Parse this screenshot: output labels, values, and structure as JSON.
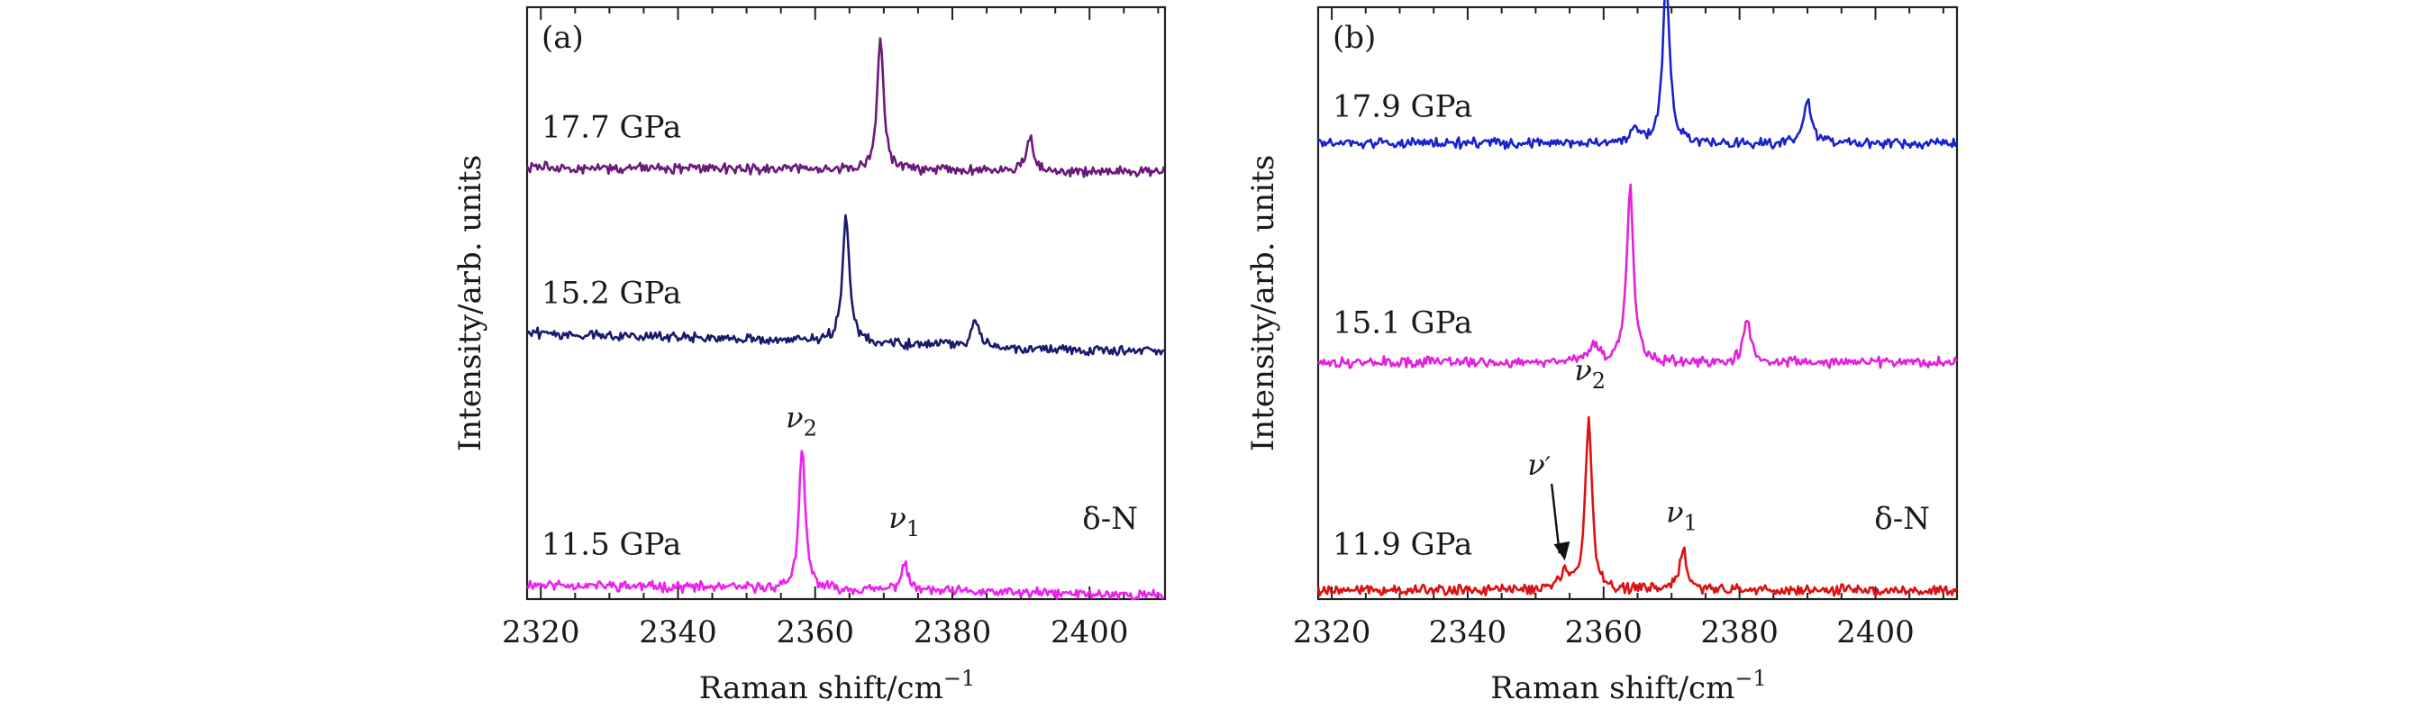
{
  "chart_data": [
    {
      "type": "line",
      "panel": "(a)",
      "xlabel": "Raman shift/cm",
      "xlabel_exponent": "−1",
      "ylabel": "Intensity/arb. units",
      "xlim": [
        2318,
        2411
      ],
      "ylim": [
        0,
        100
      ],
      "xticks": [
        2320,
        2340,
        2360,
        2380,
        2400
      ],
      "phase_label": "δ-N",
      "peak_labels": [
        {
          "name": "v2",
          "base": "ν",
          "sub": "2",
          "x": 2358,
          "y": 29
        },
        {
          "name": "v1",
          "base": "ν",
          "sub": "1",
          "x": 2373,
          "y": 12
        }
      ],
      "series": [
        {
          "name": "11.5 GPa",
          "color": "#ee22ee",
          "baseline": 2.5,
          "slope": -0.02,
          "peaks": [
            {
              "x": 2358.1,
              "h": 23.5,
              "w": 0.55
            },
            {
              "x": 2373.0,
              "h": 4.4,
              "w": 0.65
            }
          ],
          "label_y": 7.5
        },
        {
          "name": "15.2 GPa",
          "color": "#1a1a6e",
          "baseline": 45.0,
          "slope": -0.035,
          "peaks": [
            {
              "x": 2364.5,
              "h": 21.5,
              "w": 0.6
            },
            {
              "x": 2383.3,
              "h": 5.0,
              "w": 0.6
            }
          ],
          "label_y": 50
        },
        {
          "name": "17.7 GPa",
          "color": "#6a1a7a",
          "baseline": 73.0,
          "slope": -0.01,
          "peaks": [
            {
              "x": 2369.5,
              "h": 22.5,
              "w": 0.55
            },
            {
              "x": 2391.3,
              "h": 6.3,
              "w": 0.55
            }
          ],
          "label_y": 78
        }
      ]
    },
    {
      "type": "line",
      "panel": "(b)",
      "xlabel": "Raman shift/cm",
      "xlabel_exponent": "−1",
      "ylabel": "Intensity/arb. units",
      "xlim": [
        2318,
        2412
      ],
      "ylim": [
        0,
        100
      ],
      "xticks": [
        2320,
        2340,
        2360,
        2380,
        2400
      ],
      "phase_label": "δ-N",
      "peak_labels": [
        {
          "name": "v2",
          "base": "ν",
          "sub": "2",
          "x": 2358,
          "y": 37
        },
        {
          "name": "v1",
          "base": "ν",
          "sub": "1",
          "x": 2371.5,
          "y": 13
        },
        {
          "name": "v'",
          "base": "ν",
          "sub": "′",
          "x": 2350.5,
          "y": 21,
          "arrow_to": [
            2354.3,
            6.5
          ]
        }
      ],
      "series": [
        {
          "name": "11.9 GPa",
          "color": "#dd1111",
          "baseline": 1.5,
          "slope": 0,
          "peaks": [
            {
              "x": 2357.8,
              "h": 28.5,
              "w": 0.6
            },
            {
              "x": 2371.7,
              "h": 7.0,
              "w": 0.65
            },
            {
              "x": 2354.3,
              "h": 2.8,
              "w": 0.8
            }
          ],
          "label_y": 7.5
        },
        {
          "name": "15.1 GPa",
          "color": "#e222dd",
          "baseline": 40.0,
          "slope": 0,
          "peaks": [
            {
              "x": 2363.9,
              "h": 29.5,
              "w": 0.6
            },
            {
              "x": 2381.1,
              "h": 7.2,
              "w": 0.65
            },
            {
              "x": 2358.5,
              "h": 3.0,
              "w": 0.9
            }
          ],
          "label_y": 45
        },
        {
          "name": "17.9  GPa",
          "color": "#1a22cc",
          "baseline": 77.0,
          "slope": 0,
          "peaks": [
            {
              "x": 2369.2,
              "h": 28.0,
              "w": 0.6
            },
            {
              "x": 2390.0,
              "h": 7.0,
              "w": 0.7
            },
            {
              "x": 2364.5,
              "h": 2.0,
              "w": 0.9
            }
          ],
          "label_y": 81.5
        }
      ]
    }
  ]
}
